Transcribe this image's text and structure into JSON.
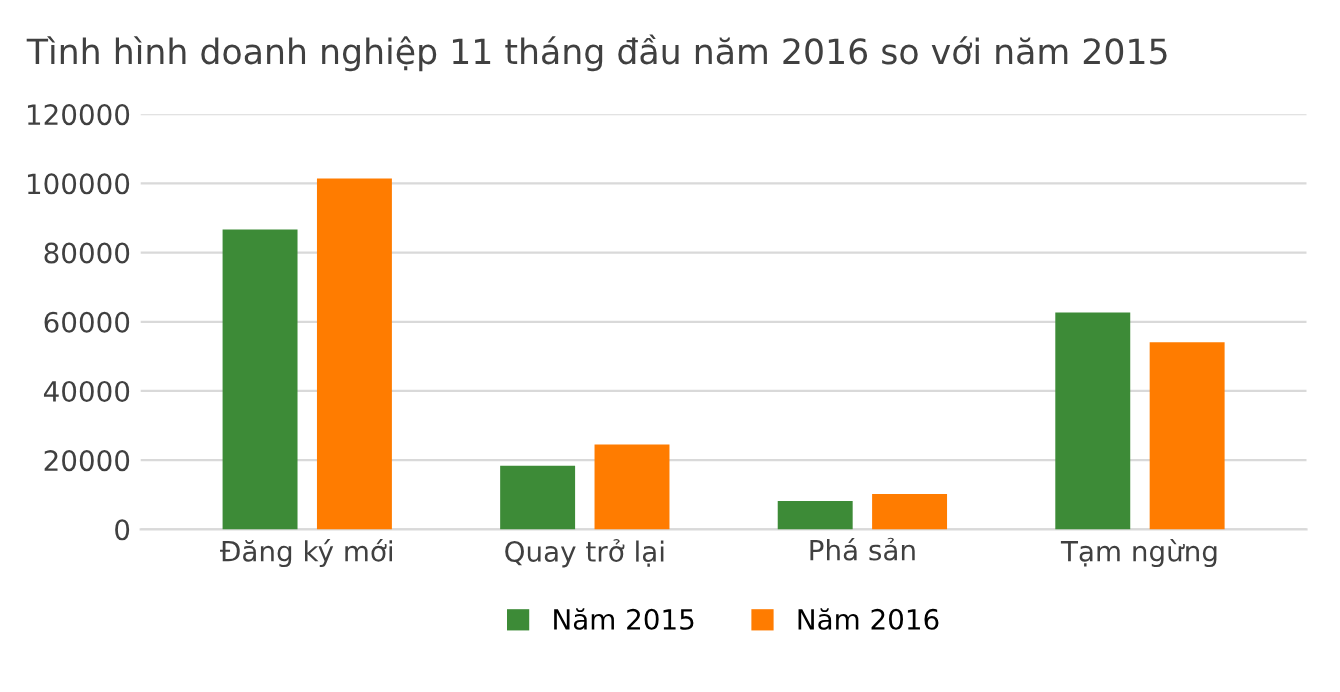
{
  "chart_data": {
    "type": "bar",
    "title": "Tình hình doanh nghiệp 11 tháng đầu năm 2016 so với năm 2015",
    "categories": [
      "Đăng ký mới",
      "Quay trở lại",
      "Phá sản",
      "Tạm ngừng"
    ],
    "series": [
      {
        "name": "Năm 2015",
        "color": "#3d8b37",
        "values": [
          86700,
          18400,
          8200,
          62700
        ]
      },
      {
        "name": "Năm 2016",
        "color": "#ff7c00",
        "values": [
          101400,
          24500,
          10200,
          54100
        ]
      }
    ],
    "ylim": [
      0,
      120000
    ],
    "yticks": [
      0,
      20000,
      40000,
      60000,
      80000,
      100000,
      120000
    ],
    "grid": "y",
    "legend": "bottom"
  }
}
